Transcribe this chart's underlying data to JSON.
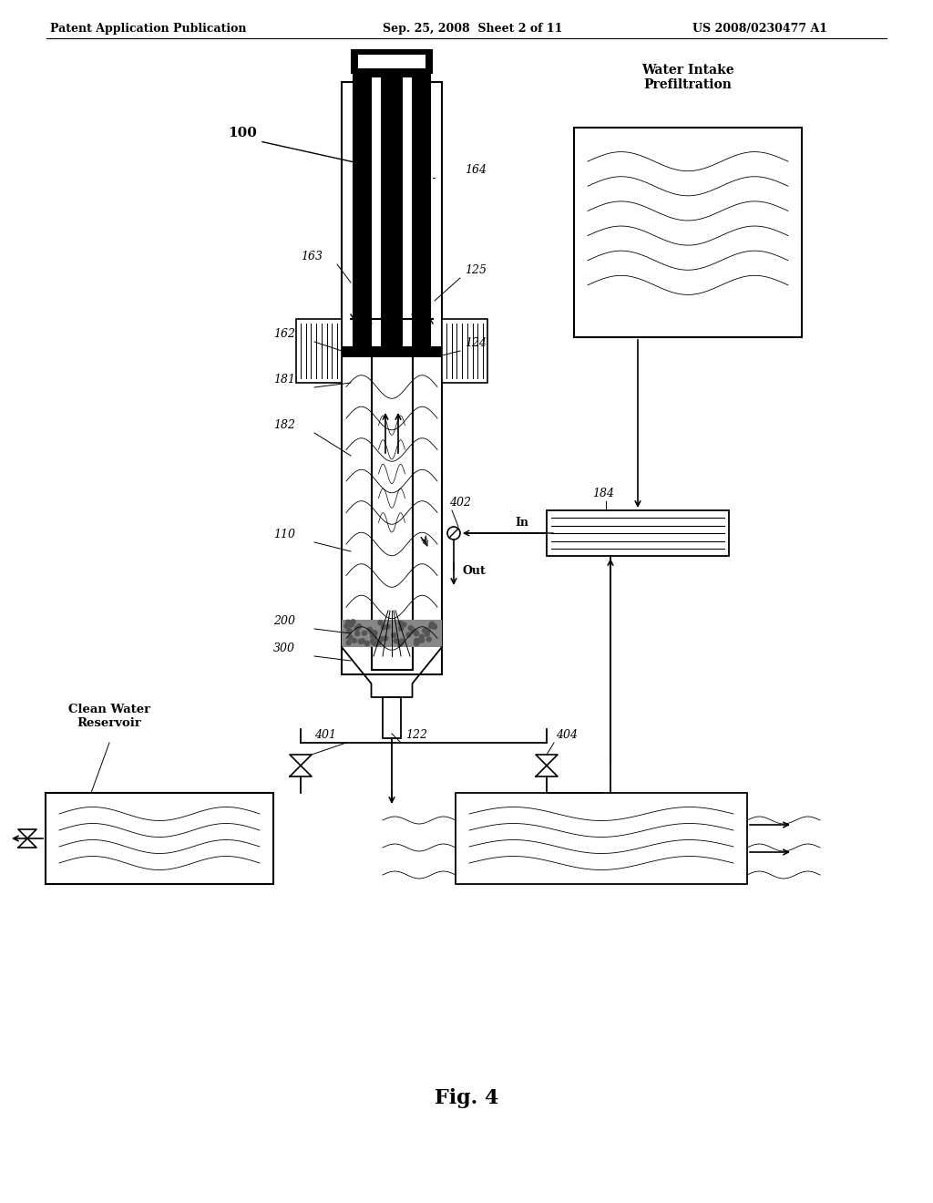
{
  "title": "Fig. 4",
  "header_left": "Patent Application Publication",
  "header_center": "Sep. 25, 2008  Sheet 2 of 11",
  "header_right": "US 2008/0230477 A1",
  "bg_color": "#ffffff",
  "label_100": "100",
  "label_164": "164",
  "label_163": "163",
  "label_125": "125",
  "label_162": "162",
  "label_124": "124",
  "label_181": "181",
  "label_182": "182",
  "label_110": "110",
  "label_200": "200",
  "label_300": "300",
  "label_401": "401",
  "label_122": "122",
  "label_404": "404",
  "label_402": "402",
  "label_184": "184",
  "label_In": "In",
  "label_Out": "Out",
  "label_water_intake": "Water Intake\nPrefiltration",
  "label_clean_water": "Clean Water\nReservoir"
}
